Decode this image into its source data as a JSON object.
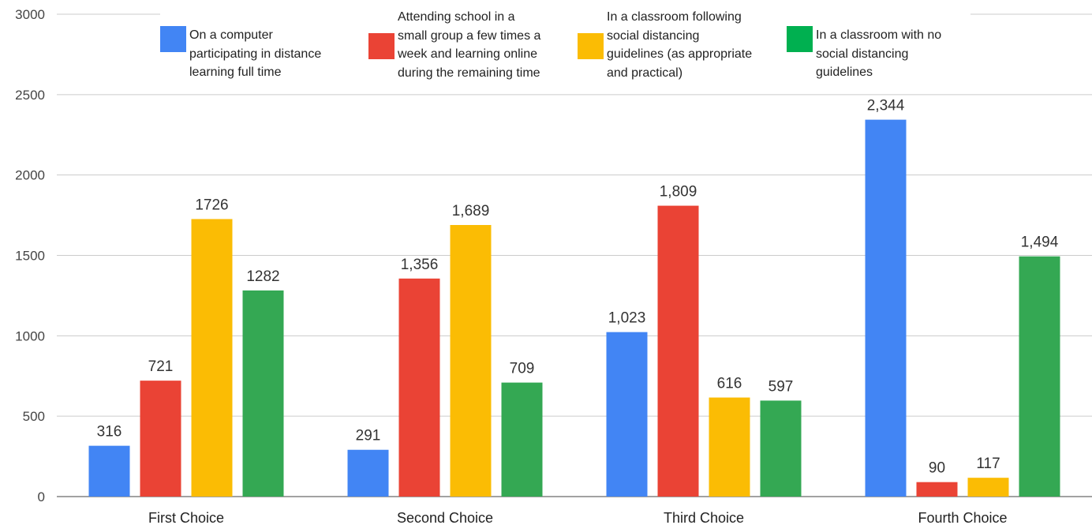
{
  "chart_data": {
    "type": "bar",
    "categories": [
      "First Choice",
      "Second Choice",
      "Third Choice",
      "Fourth Choice"
    ],
    "series": [
      {
        "name": "On a computer\nparticipating in distance\nlearning full time",
        "color": "#4285f4",
        "values": [
          316,
          291,
          1023,
          2344
        ],
        "labels": [
          "316",
          "291",
          "1,023",
          "2,344"
        ]
      },
      {
        "name": "Attending school in a\nsmall group a few times a\nweek and learning online\nduring the remaining time",
        "color": "#ea4335",
        "values": [
          721,
          1356,
          1809,
          90
        ],
        "labels": [
          "721",
          "1,356",
          "1,809",
          "90"
        ]
      },
      {
        "name": "In a classroom following\nsocial distancing\nguidelines (as appropriate\nand practical)",
        "color": "#fbbc04",
        "values": [
          1726,
          1689,
          616,
          117
        ],
        "labels": [
          "1726",
          "1,689",
          "616",
          "117"
        ]
      },
      {
        "name": "In a classroom with no\nsocial distancing\nguidelines",
        "color": "#34a853",
        "values": [
          1282,
          709,
          597,
          1494
        ],
        "labels": [
          "1282",
          "709",
          "597",
          "1,494"
        ]
      }
    ],
    "y_ticks": [
      "0",
      "500",
      "1000",
      "1500",
      "2000",
      "2500",
      "3000"
    ],
    "ylim": [
      0,
      3000
    ],
    "grid": true,
    "legend_position": "top",
    "title": "",
    "xlabel": "",
    "ylabel": ""
  }
}
